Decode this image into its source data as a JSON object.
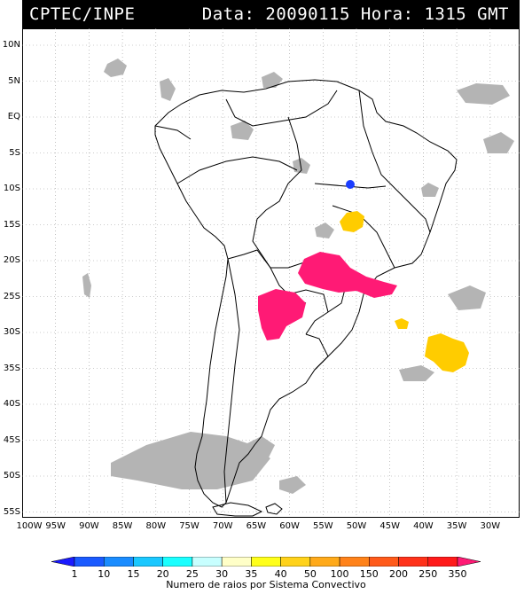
{
  "header": {
    "source": "CPTEC/INPE",
    "datetime": "Data: 20090115 Hora: 1315 GMT"
  },
  "map": {
    "lat_labels": [
      "10N",
      "5N",
      "EQ",
      "5S",
      "10S",
      "15S",
      "20S",
      "25S",
      "30S",
      "35S",
      "40S",
      "45S",
      "50S",
      "55S"
    ],
    "lon_labels": [
      "100W",
      "95W",
      "90W",
      "85W",
      "80W",
      "75W",
      "70W",
      "65W",
      "60W",
      "55W",
      "50W",
      "45W",
      "40W",
      "35W",
      "30W"
    ],
    "colors": {
      "cloud": "#b4b4b4",
      "border": "#000000"
    },
    "systems": [
      {
        "name": "central-brazil-blue",
        "level": "1",
        "color": "#1a3cff"
      },
      {
        "name": "goias-yellow",
        "level": "100",
        "color": "#ffcc00"
      },
      {
        "name": "parana-magenta",
        "level": "350",
        "color": "#ff1a75"
      },
      {
        "name": "paraguay-magenta",
        "level": "350",
        "color": "#ff1a75"
      },
      {
        "name": "atlantic-yellow",
        "level": "100",
        "color": "#ffcc00"
      },
      {
        "name": "atlantic-small-yellow",
        "level": "100",
        "color": "#ffcc00"
      }
    ]
  },
  "legend": {
    "ticks": [
      "1",
      "10",
      "15",
      "20",
      "25",
      "30",
      "35",
      "40",
      "50",
      "100",
      "150",
      "200",
      "250",
      "350"
    ],
    "colors": [
      "#1a1aff",
      "#1a5aff",
      "#1a8cff",
      "#1ac8ff",
      "#1affff",
      "#c8ffff",
      "#ffffc8",
      "#ffff1a",
      "#ffd21a",
      "#ffaa1a",
      "#ff821a",
      "#ff5a1a",
      "#ff321a",
      "#ff1a1a",
      "#ff1a75"
    ],
    "caption": "Numero de raios por Sistema Convectivo"
  }
}
